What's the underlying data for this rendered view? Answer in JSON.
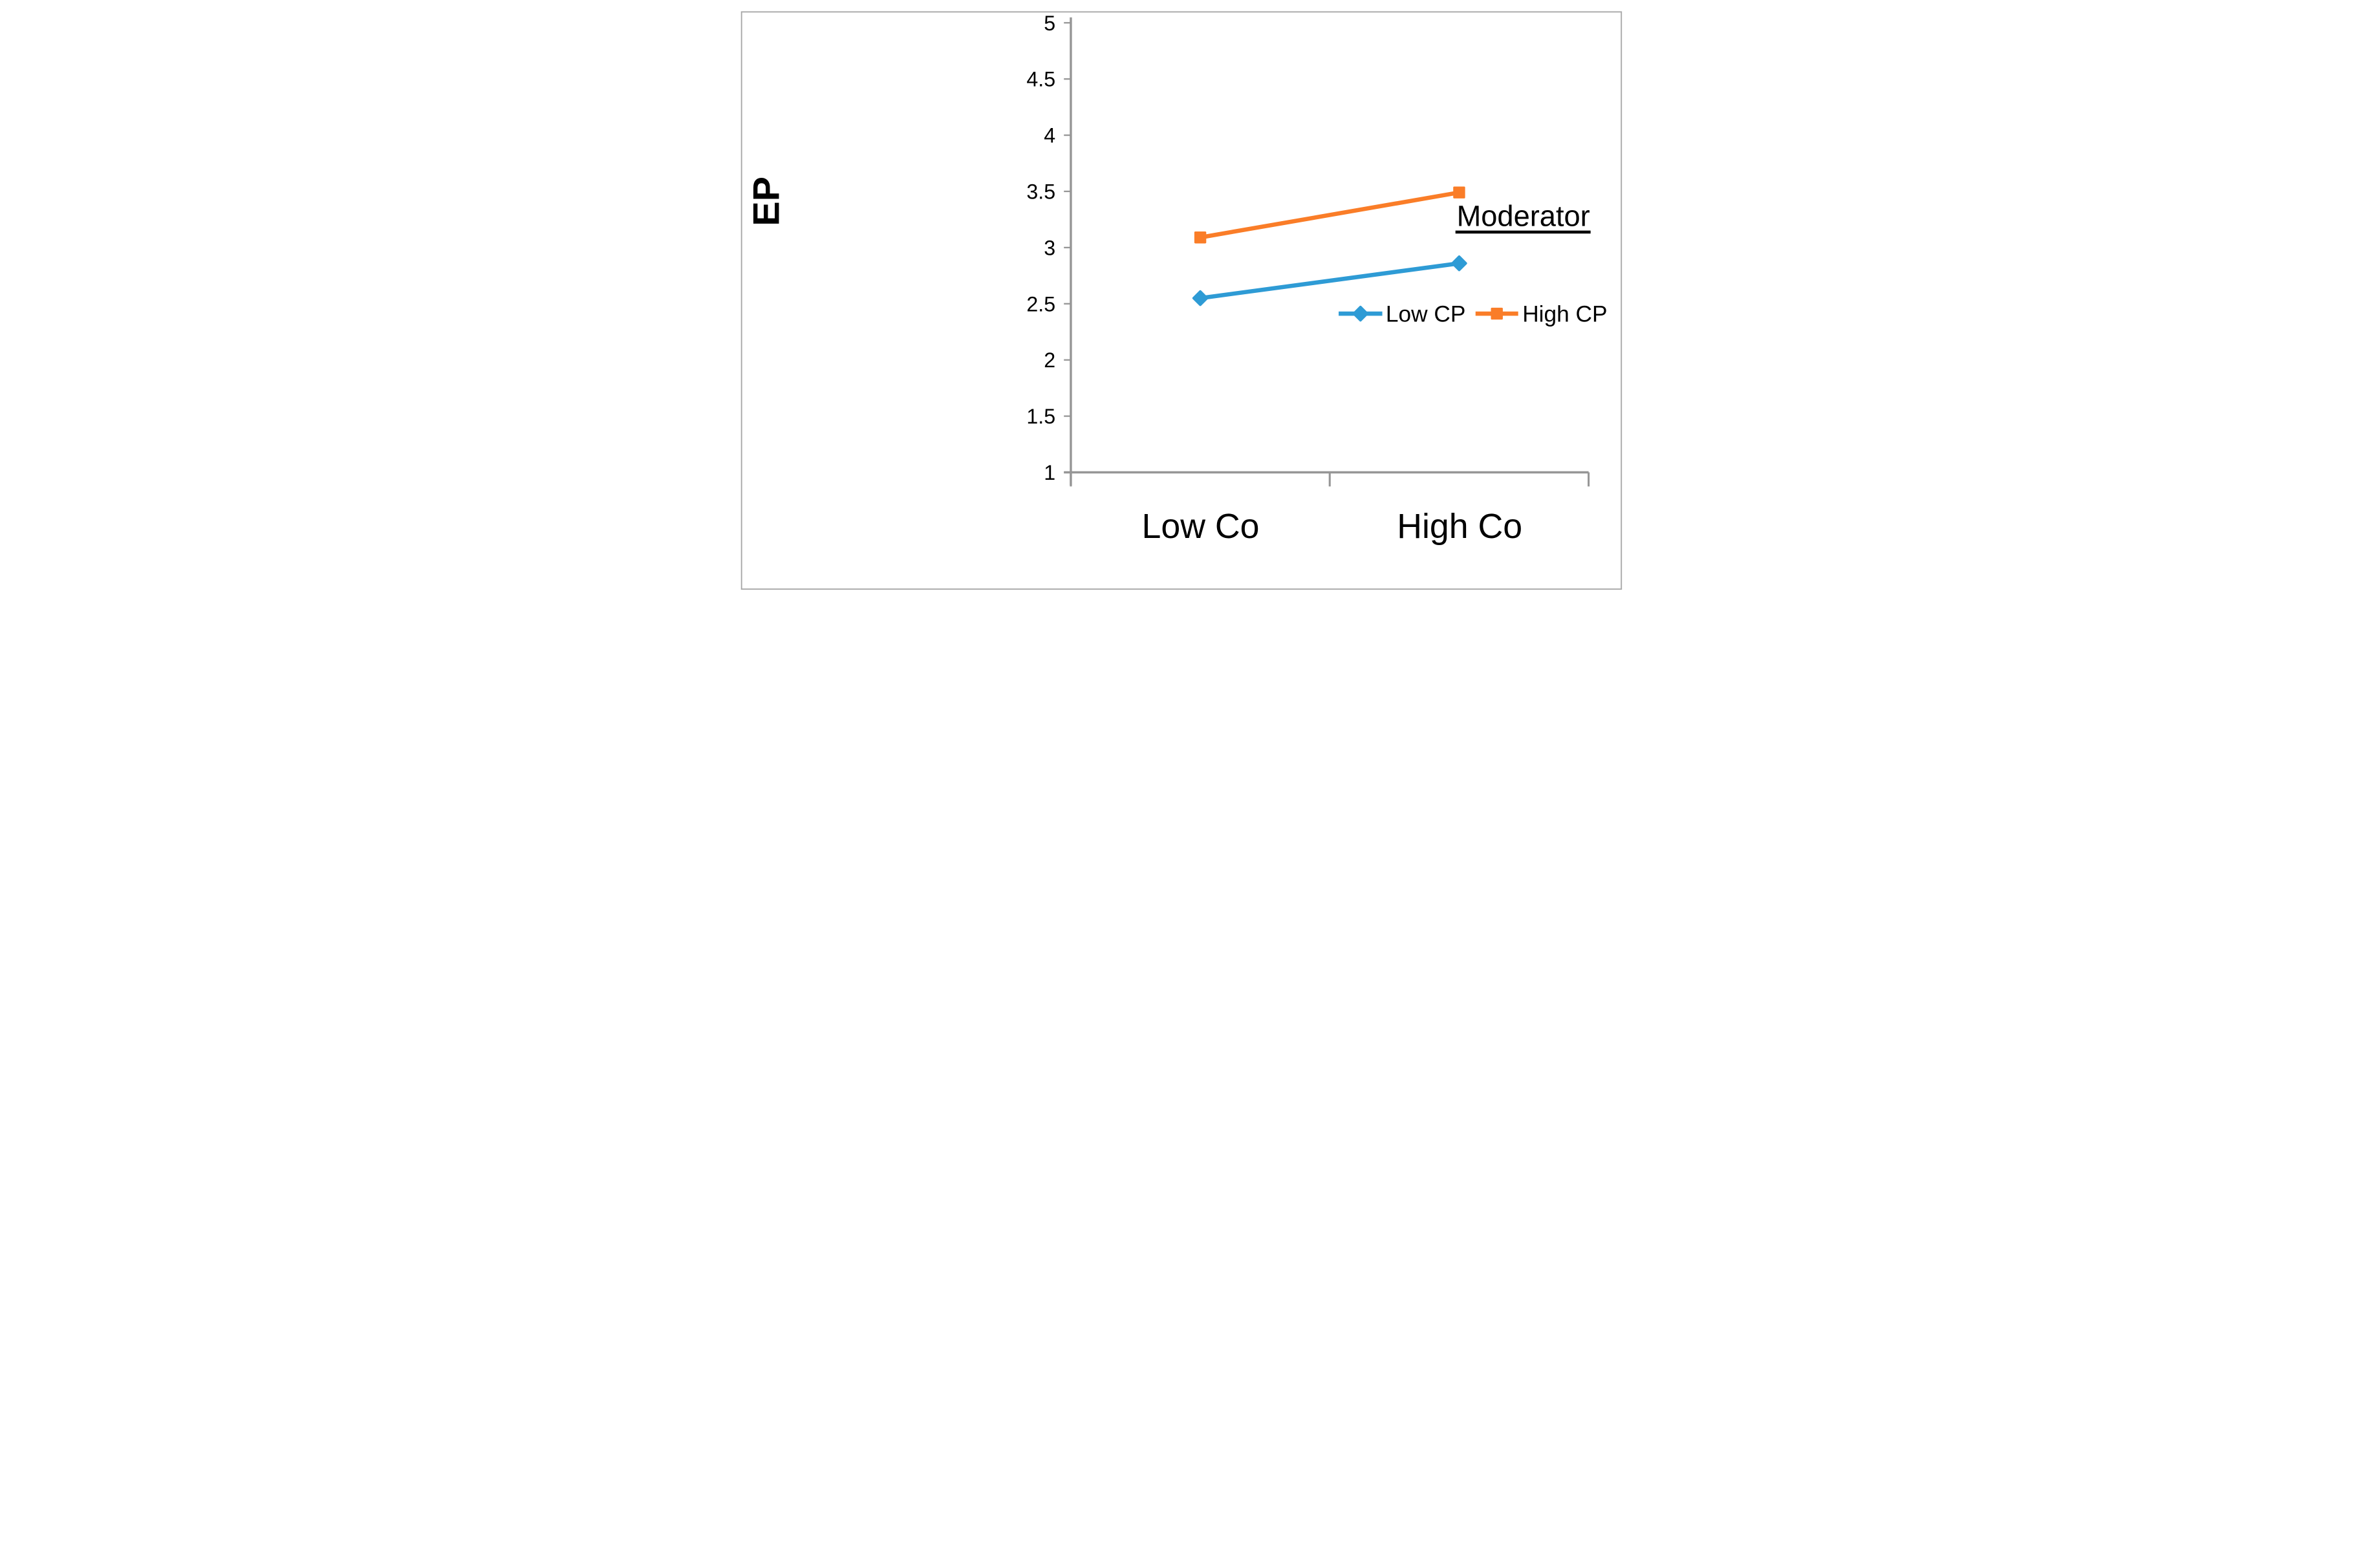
{
  "figure": {
    "background": "#FFFFFF",
    "border_color": "#A9A9A9"
  },
  "chart_data": {
    "type": "line",
    "title": "",
    "ylabel": "EP",
    "xlabel": "",
    "categories": [
      "Low Co",
      "High Co"
    ],
    "series": [
      {
        "name": "Low CP",
        "color": "#2E9BD5",
        "marker": "diamond",
        "values": [
          2.55,
          2.86
        ]
      },
      {
        "name": "High CP",
        "color": "#FA7D28",
        "marker": "square",
        "values": [
          3.09,
          3.49
        ]
      }
    ],
    "ylim": [
      1,
      5
    ],
    "ytick_step": 0.5,
    "ytick_labels": [
      "1",
      "1.5",
      "2",
      "2.5",
      "3",
      "3.5",
      "4",
      "4.5",
      "5"
    ],
    "grid": false,
    "legend_title": "Moderator",
    "legend_position": "middle-right",
    "axis_color": "#969696"
  }
}
